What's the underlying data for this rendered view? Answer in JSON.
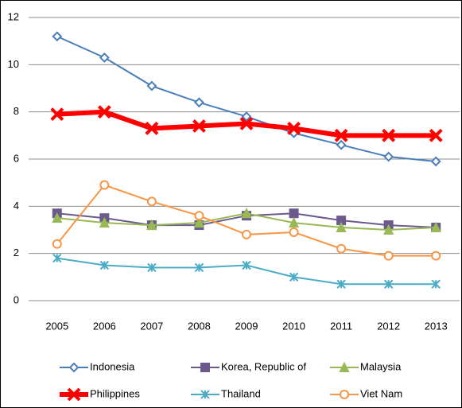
{
  "chart_data": {
    "type": "line",
    "categories": [
      "2005",
      "2006",
      "2007",
      "2008",
      "2009",
      "2010",
      "2011",
      "2012",
      "2013"
    ],
    "ylim": [
      0,
      12
    ],
    "yticks": [
      0,
      2,
      4,
      6,
      8,
      10,
      12
    ],
    "grid": true,
    "legend": "bottom",
    "series": [
      {
        "name": "Indonesia",
        "color": "#4a7ebb",
        "marker": "diamond",
        "values": [
          11.2,
          10.3,
          9.1,
          8.4,
          7.8,
          7.1,
          6.6,
          6.1,
          5.9
        ]
      },
      {
        "name": "Korea, Republic of",
        "color": "#6c5a8e",
        "marker": "square",
        "values": [
          3.7,
          3.5,
          3.2,
          3.2,
          3.6,
          3.7,
          3.4,
          3.2,
          3.1
        ]
      },
      {
        "name": "Malaysia",
        "color": "#98b954",
        "marker": "triangle",
        "values": [
          3.5,
          3.3,
          3.2,
          3.3,
          3.7,
          3.3,
          3.1,
          3.0,
          3.1
        ]
      },
      {
        "name": "Philippines",
        "color": "#ff0000",
        "marker": "x",
        "values": [
          7.9,
          8.0,
          7.3,
          7.4,
          7.5,
          7.3,
          7.0,
          7.0,
          7.0
        ]
      },
      {
        "name": "Thailand",
        "color": "#4bacc6",
        "marker": "star",
        "values": [
          1.8,
          1.5,
          1.4,
          1.4,
          1.5,
          1.0,
          0.7,
          0.7,
          0.7
        ]
      },
      {
        "name": "Viet Nam",
        "color": "#f79646",
        "marker": "circle",
        "values": [
          2.4,
          4.9,
          4.2,
          3.6,
          2.8,
          2.9,
          2.2,
          1.9,
          1.9
        ]
      }
    ]
  }
}
